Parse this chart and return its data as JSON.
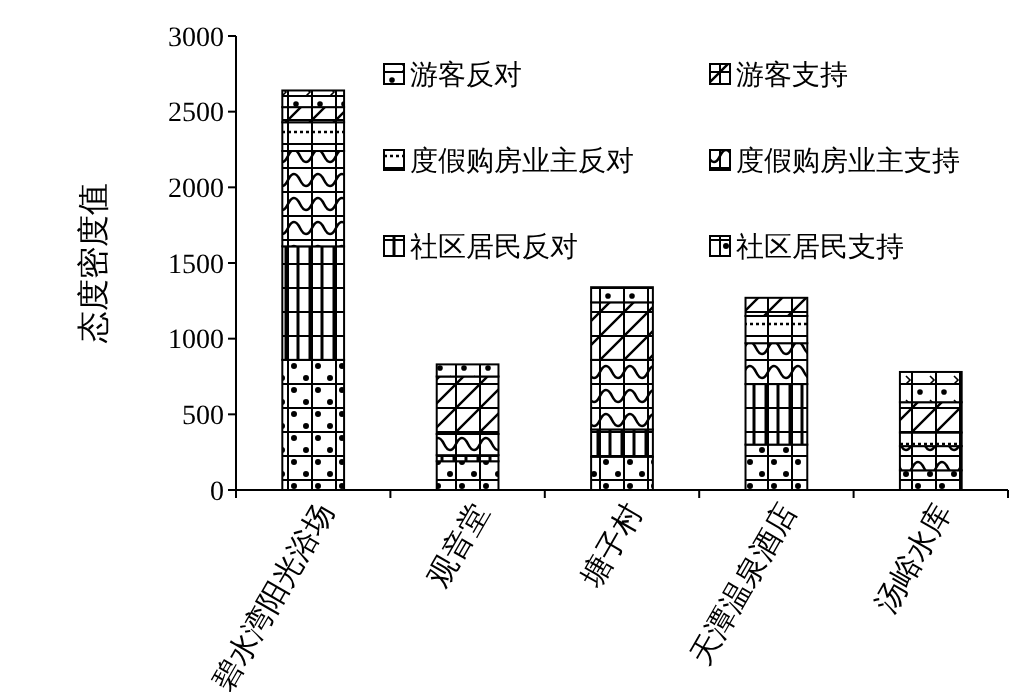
{
  "chart_data": {
    "type": "bar",
    "stacked": true,
    "ylabel": "态度密度值",
    "categories": [
      "碧水湾阳光浴场",
      "观音堂",
      "塘子村",
      "天潭温泉酒店",
      "汤峪水库"
    ],
    "ylim": [
      0,
      3000
    ],
    "yticks": [
      0,
      500,
      1000,
      1500,
      2000,
      2500,
      3000
    ],
    "legend": "top right",
    "grid": false,
    "series": [
      {
        "name": "社区居民支持",
        "color": "#000000",
        "values": [
          860,
          190,
          220,
          300,
          130
        ]
      },
      {
        "name": "社区居民反对",
        "color": "#000000",
        "values": [
          750,
          40,
          180,
          400,
          0
        ]
      },
      {
        "name": "度假购房业主支持",
        "color": "#000000",
        "values": [
          630,
          140,
          460,
          270,
          160
        ]
      },
      {
        "name": "度假购房业主反对",
        "color": "#000000",
        "values": [
          190,
          0,
          0,
          180,
          90
        ]
      },
      {
        "name": "游客支持",
        "color": "#000000",
        "values": [
          100,
          380,
          380,
          120,
          200
        ]
      },
      {
        "name": "游客反对",
        "color": "#000000",
        "values": [
          110,
          80,
          100,
          0,
          200
        ]
      }
    ]
  }
}
